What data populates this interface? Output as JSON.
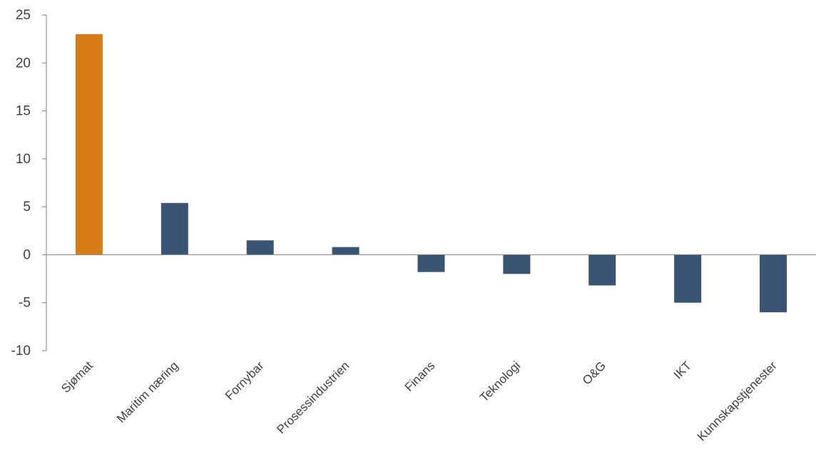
{
  "chart_data": {
    "type": "bar",
    "title": "",
    "xlabel": "",
    "ylabel": "",
    "categories": [
      "Sjømat",
      "Maritim næring",
      "Fornybar",
      "Prosessindustrien",
      "Finans",
      "Teknologi",
      "O&G",
      "IKT",
      "Kunnskapstjenester"
    ],
    "values": [
      23,
      5.4,
      1.5,
      0.8,
      -1.8,
      -2.0,
      -3.2,
      -5.0,
      -6.0
    ],
    "highlight_index": 0,
    "colors": {
      "default": "#3a5573",
      "highlight": "#d67d1a"
    },
    "ylim": [
      -10,
      25
    ],
    "yticks": [
      25,
      20,
      15,
      10,
      5,
      0,
      -5,
      -10
    ],
    "ytick_labels": [
      "25",
      "20",
      "15",
      "10",
      "5",
      "0",
      "-5",
      "-10"
    ],
    "grid": false,
    "legend": "none"
  }
}
